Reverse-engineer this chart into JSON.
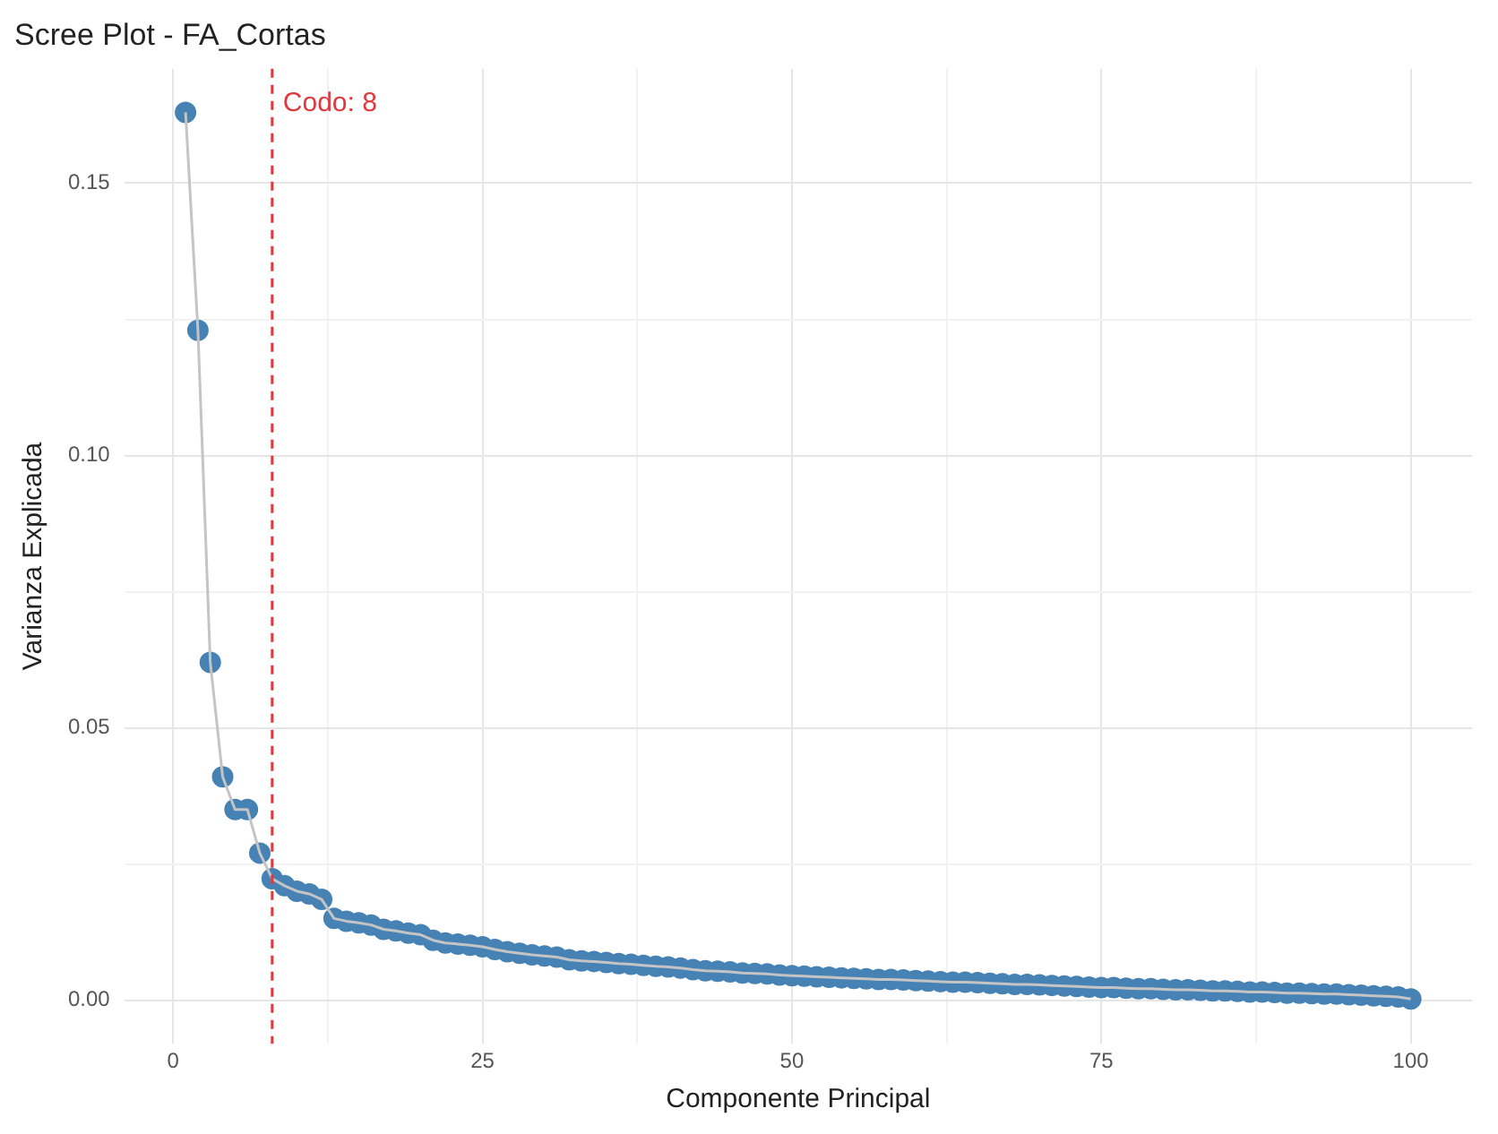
{
  "chart_data": {
    "type": "line",
    "title": "Scree Plot - FA_Cortas",
    "xlabel": "Componente Principal",
    "ylabel": "Varianza Explicada",
    "marker": "circle",
    "grid": true,
    "x": [
      1,
      2,
      3,
      4,
      5,
      6,
      7,
      8,
      9,
      10,
      11,
      12,
      13,
      14,
      15,
      16,
      17,
      18,
      19,
      20,
      21,
      22,
      23,
      24,
      25,
      26,
      27,
      28,
      29,
      30,
      31,
      32,
      33,
      34,
      35,
      36,
      37,
      38,
      39,
      40,
      41,
      42,
      43,
      44,
      45,
      46,
      47,
      48,
      49,
      50,
      51,
      52,
      53,
      54,
      55,
      56,
      57,
      58,
      59,
      60,
      61,
      62,
      63,
      64,
      65,
      66,
      67,
      68,
      69,
      70,
      71,
      72,
      73,
      74,
      75,
      76,
      77,
      78,
      79,
      80,
      81,
      82,
      83,
      84,
      85,
      86,
      87,
      88,
      89,
      90,
      91,
      92,
      93,
      94,
      95,
      96,
      97,
      98,
      99,
      100
    ],
    "series": [
      {
        "color": "#4682b4",
        "values": [
          0.163,
          0.123,
          0.062,
          0.041,
          0.035,
          0.035,
          0.027,
          0.0223,
          0.021,
          0.02,
          0.0195,
          0.0185,
          0.015,
          0.0145,
          0.0142,
          0.0138,
          0.013,
          0.0127,
          0.0123,
          0.012,
          0.011,
          0.0105,
          0.0103,
          0.0101,
          0.0098,
          0.0093,
          0.0089,
          0.0086,
          0.0083,
          0.0081,
          0.0079,
          0.0074,
          0.0072,
          0.0071,
          0.0069,
          0.0067,
          0.0066,
          0.0064,
          0.0062,
          0.0061,
          0.0059,
          0.0056,
          0.0054,
          0.0053,
          0.0052,
          0.005,
          0.0049,
          0.0048,
          0.0046,
          0.0045,
          0.0044,
          0.0043,
          0.0042,
          0.0041,
          0.004,
          0.0039,
          0.0038,
          0.0038,
          0.0037,
          0.0036,
          0.0035,
          0.0034,
          0.0033,
          0.0033,
          0.0032,
          0.0031,
          0.003,
          0.0029,
          0.0029,
          0.0028,
          0.0027,
          0.0026,
          0.0025,
          0.0024,
          0.0023,
          0.0023,
          0.0022,
          0.0021,
          0.0021,
          0.002,
          0.0019,
          0.0019,
          0.0018,
          0.0017,
          0.0017,
          0.0016,
          0.0015,
          0.0015,
          0.0014,
          0.0013,
          0.0013,
          0.0012,
          0.0011,
          0.0011,
          0.001,
          0.0009,
          0.0008,
          0.0007,
          0.0006,
          0.0002
        ]
      }
    ],
    "xlim": [
      -3.95,
      104.95
    ],
    "ylim": [
      -0.008,
      0.171
    ],
    "xticks": [
      0,
      {
        "value": 12.5,
        "label": null
      },
      25,
      {
        "value": 37.5,
        "label": null
      },
      50,
      {
        "value": 62.5,
        "label": null
      },
      75,
      {
        "value": 87.5,
        "label": null
      },
      100
    ],
    "yticks": [
      {
        "value": 0,
        "label": "0.00"
      },
      {
        "value": 0.025,
        "label": null
      },
      {
        "value": 0.05,
        "label": "0.05"
      },
      {
        "value": 0.075,
        "label": null
      },
      {
        "value": 0.1,
        "label": "0.10"
      },
      {
        "value": 0.125,
        "label": null
      },
      {
        "value": 0.15,
        "label": "0.15"
      }
    ],
    "ref_lines": [
      {
        "axis": "x",
        "value": 8,
        "label": "Codo: 8",
        "color": "#e0383e",
        "line_style": "dashed"
      }
    ]
  }
}
